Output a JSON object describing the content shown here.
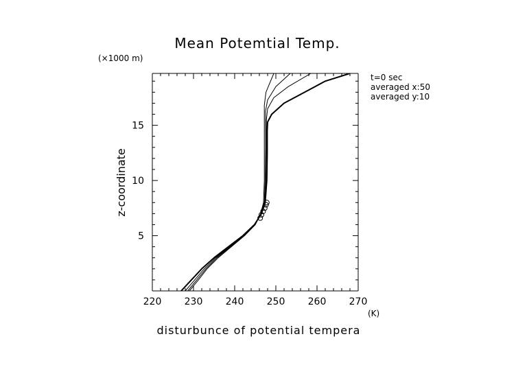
{
  "chart_data": {
    "type": "line",
    "title": "Mean Potemtial Temp.",
    "y_unit_label": "(×1000 m)",
    "xlabel": "disturbunce of potential tempera",
    "x_unit_label": "(K)",
    "ylabel": "z-coordinate",
    "annotations": [
      "t=0 sec",
      "averaged  x:50",
      "averaged  y:10"
    ],
    "xlim": [
      220,
      270
    ],
    "ylim": [
      0,
      19.7
    ],
    "x_ticks": [
      220,
      230,
      240,
      250,
      260,
      270
    ],
    "y_ticks": [
      5,
      10,
      15
    ],
    "grid": false,
    "line_color": "#000000",
    "series": [
      {
        "line_width": 2,
        "points": [
          [
            227.0,
            0.0
          ],
          [
            229.5,
            1.0
          ],
          [
            232.0,
            2.0
          ],
          [
            235.0,
            3.0
          ],
          [
            238.5,
            4.0
          ],
          [
            242.0,
            5.0
          ],
          [
            244.8,
            6.0
          ],
          [
            246.5,
            7.0
          ],
          [
            247.4,
            8.0
          ],
          [
            247.8,
            10.0
          ],
          [
            247.9,
            12.5
          ],
          [
            247.9,
            14.5
          ],
          [
            248.0,
            15.3
          ],
          [
            249.0,
            16.0
          ],
          [
            252.0,
            17.0
          ],
          [
            257.0,
            18.0
          ],
          [
            262.0,
            19.0
          ],
          [
            268.0,
            19.7
          ]
        ]
      },
      {
        "line_width": 1,
        "points": [
          [
            228.0,
            0.0
          ],
          [
            230.3,
            1.0
          ],
          [
            232.6,
            2.0
          ],
          [
            235.4,
            3.0
          ],
          [
            238.8,
            4.0
          ],
          [
            242.2,
            5.0
          ],
          [
            244.9,
            6.0
          ],
          [
            246.5,
            7.0
          ],
          [
            247.3,
            8.0
          ],
          [
            247.6,
            10.0
          ],
          [
            247.7,
            13.0
          ],
          [
            247.7,
            15.5
          ],
          [
            248.0,
            16.5
          ],
          [
            249.5,
            17.5
          ],
          [
            253.0,
            18.5
          ],
          [
            258.5,
            19.7
          ]
        ]
      },
      {
        "line_width": 1,
        "points": [
          [
            228.6,
            0.0
          ],
          [
            230.8,
            1.0
          ],
          [
            233.0,
            2.0
          ],
          [
            235.7,
            3.0
          ],
          [
            239.0,
            4.0
          ],
          [
            242.3,
            5.0
          ],
          [
            245.0,
            6.0
          ],
          [
            246.4,
            7.0
          ],
          [
            247.2,
            8.0
          ],
          [
            247.4,
            10.0
          ],
          [
            247.5,
            13.0
          ],
          [
            247.5,
            16.3
          ],
          [
            248.0,
            17.3
          ],
          [
            250.0,
            18.5
          ],
          [
            253.5,
            19.7
          ]
        ]
      },
      {
        "line_width": 1,
        "points": [
          [
            229.0,
            0.0
          ],
          [
            231.2,
            1.0
          ],
          [
            233.3,
            2.0
          ],
          [
            236.0,
            3.0
          ],
          [
            239.2,
            4.0
          ],
          [
            242.4,
            5.0
          ],
          [
            245.0,
            6.0
          ],
          [
            246.3,
            7.0
          ],
          [
            247.0,
            8.0
          ],
          [
            247.2,
            10.0
          ],
          [
            247.2,
            13.0
          ],
          [
            247.2,
            16.8
          ],
          [
            247.6,
            18.0
          ],
          [
            249.5,
            19.7
          ]
        ]
      }
    ],
    "markers": [
      [
        246.2,
        6.6
      ],
      [
        246.5,
        6.9
      ],
      [
        246.9,
        7.2
      ],
      [
        247.3,
        7.5
      ],
      [
        247.6,
        7.8
      ],
      [
        247.8,
        8.0
      ]
    ]
  }
}
